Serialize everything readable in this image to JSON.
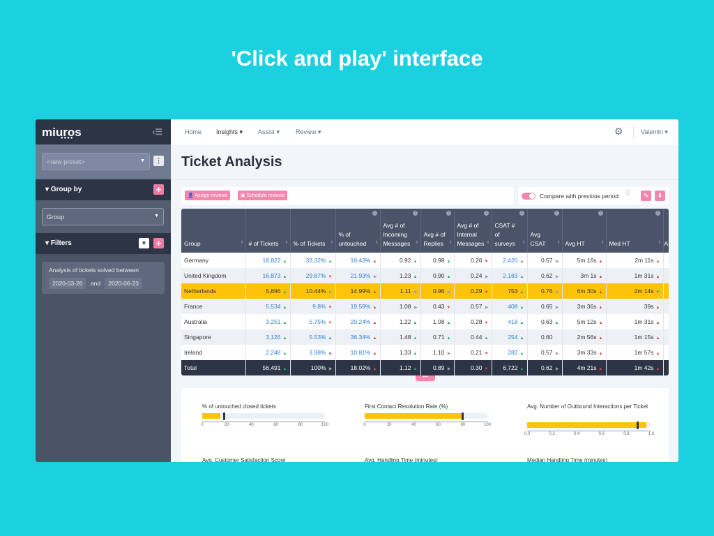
{
  "headline": "'Click and play' interface",
  "sidebar": {
    "logo": "miuros",
    "logo_dots": "●●●●",
    "preset": "<new preset>",
    "group_by": "Group by",
    "group_value": "Group",
    "filters": "Filters",
    "filter_text": "Analysis of tickets solved between",
    "date_from": "2020-03-26",
    "and": "and",
    "date_to": "2020-06-23"
  },
  "nav": {
    "items": [
      "Home",
      "Insights ▾",
      "Assist ▾",
      "Review ▾"
    ],
    "user": "Valentin ▾"
  },
  "page_title": "Ticket Analysis",
  "toolbar": {
    "assign": "Assign reviews",
    "schedule": "Schedule reviews",
    "compare": "Compare with previous period",
    "compare_on": true
  },
  "table": {
    "headers": [
      "Group",
      "# of Tickets",
      "% of Tickets",
      "% of untouched",
      "Avg # of Incoming Messages",
      "Avg # of Replies",
      "Avg # of Internal Messages",
      "CSAT # of surveys",
      "Avg CSAT",
      "Avg HT",
      "Med HT",
      "A"
    ],
    "highlight_color": "#fec30a",
    "rows": [
      {
        "group": "Germany",
        "cells": [
          [
            "18,822",
            "ug"
          ],
          [
            "33.32%",
            "ug"
          ],
          [
            "10.43%",
            "ur"
          ],
          [
            "0.92",
            "ug"
          ],
          [
            "0.98",
            "ug"
          ],
          [
            "0.26",
            "dr"
          ],
          [
            "2,420",
            "ug"
          ],
          [
            "0.57",
            "f"
          ],
          [
            "5m 16s",
            "ur"
          ],
          [
            "2m 11s",
            "ur"
          ]
        ]
      },
      {
        "group": "United Kingdom",
        "cells": [
          [
            "16,873",
            "ug"
          ],
          [
            "29.87%",
            "dr"
          ],
          [
            "21.93%",
            "f"
          ],
          [
            "1.23",
            "ug"
          ],
          [
            "0.90",
            "ug"
          ],
          [
            "0.24",
            "f"
          ],
          [
            "2,183",
            "ug"
          ],
          [
            "0.62",
            "f"
          ],
          [
            "3m 1s",
            "ur"
          ],
          [
            "1m 31s",
            "ur"
          ]
        ]
      },
      {
        "group": "Netherlands",
        "highlight": true,
        "cells": [
          [
            "5,896",
            "ug"
          ],
          [
            "10.44%",
            "f"
          ],
          [
            "14.99%",
            "ur"
          ],
          [
            "1.11",
            "f"
          ],
          [
            "0.96",
            "f"
          ],
          [
            "0.29",
            "dr"
          ],
          [
            "753",
            "ug"
          ],
          [
            "0.76",
            "f"
          ],
          [
            "6m 30s",
            "ur"
          ],
          [
            "2m 14s",
            "dg"
          ]
        ]
      },
      {
        "group": "France",
        "cells": [
          [
            "5,534",
            "ug"
          ],
          [
            "9.8%",
            "dr"
          ],
          [
            "19.59%",
            "ur"
          ],
          [
            "1.08",
            "f"
          ],
          [
            "0.43",
            "dr"
          ],
          [
            "0.57",
            "f"
          ],
          [
            "408",
            "ug"
          ],
          [
            "0.65",
            "f"
          ],
          [
            "3m 36s",
            "ur"
          ],
          [
            "39s",
            "ur"
          ]
        ]
      },
      {
        "group": "Australia",
        "cells": [
          [
            "3,251",
            "ug"
          ],
          [
            "5.75%",
            "dr"
          ],
          [
            "20.24%",
            "ur"
          ],
          [
            "1.22",
            "ug"
          ],
          [
            "1.08",
            "ug"
          ],
          [
            "0.28",
            "dr"
          ],
          [
            "418",
            "ug"
          ],
          [
            "0.63",
            "ug"
          ],
          [
            "5m 12s",
            "ur"
          ],
          [
            "1m 31s",
            "ur"
          ]
        ]
      },
      {
        "group": "Singapore",
        "cells": [
          [
            "3,126",
            "ug"
          ],
          [
            "5.53%",
            "ug"
          ],
          [
            "36.34%",
            "ur"
          ],
          [
            "1.48",
            "ug"
          ],
          [
            "0.71",
            "ug"
          ],
          [
            "0.44",
            "ug"
          ],
          [
            "254",
            "ug"
          ],
          [
            "0.60",
            ""
          ],
          [
            "2m 56s",
            "ur"
          ],
          [
            "1m 15s",
            "ur"
          ]
        ]
      },
      {
        "group": "Ireland",
        "cells": [
          [
            "2,248",
            "ug"
          ],
          [
            "3.98%",
            "f"
          ],
          [
            "10.81%",
            "ur"
          ],
          [
            "1.33",
            "ug"
          ],
          [
            "1.10",
            "f"
          ],
          [
            "0.21",
            "dr"
          ],
          [
            "282",
            "ug"
          ],
          [
            "0.57",
            "f"
          ],
          [
            "3m 33s",
            "ur"
          ],
          [
            "1m 57s",
            "ur"
          ]
        ]
      }
    ],
    "total": {
      "group": "Total",
      "cells": [
        [
          "56,491",
          "ug"
        ],
        [
          "100%",
          "f"
        ],
        [
          "18.02%",
          "ur"
        ],
        [
          "1.12",
          "ug"
        ],
        [
          "0.89",
          "f"
        ],
        [
          "0.30",
          "dr"
        ],
        [
          "6,722",
          "ug"
        ],
        [
          "0.62",
          "f"
        ],
        [
          "4m 21s",
          "ur"
        ],
        [
          "1m 42s",
          "ur"
        ]
      ]
    }
  },
  "kpis": [
    {
      "title": "% of untouched closed tickets",
      "value": 15,
      "target": 18,
      "min": 0,
      "max": 100,
      "ticks": [
        "0",
        "20",
        "40",
        "60",
        "80",
        "100"
      ]
    },
    {
      "title": "First Contact Resolution Rate (%)",
      "value": 80,
      "target": 80,
      "min": 0,
      "max": 100,
      "ticks": [
        "0",
        "20",
        "40",
        "60",
        "80",
        "100"
      ]
    },
    {
      "title": "Avg. Number of Outbound Interactions per Ticket",
      "value": 0.96,
      "target": 0.89,
      "min": 0,
      "max": 1,
      "ticks": [
        "0.0",
        "0.2",
        "0.4",
        "0.6",
        "0.8",
        "1.0"
      ]
    },
    {
      "title": "Avg. Customer Satisfaction Score"
    },
    {
      "title": "Avg. Handling Time (minutes)"
    },
    {
      "title": "Median Handling Time (minutes)"
    }
  ]
}
